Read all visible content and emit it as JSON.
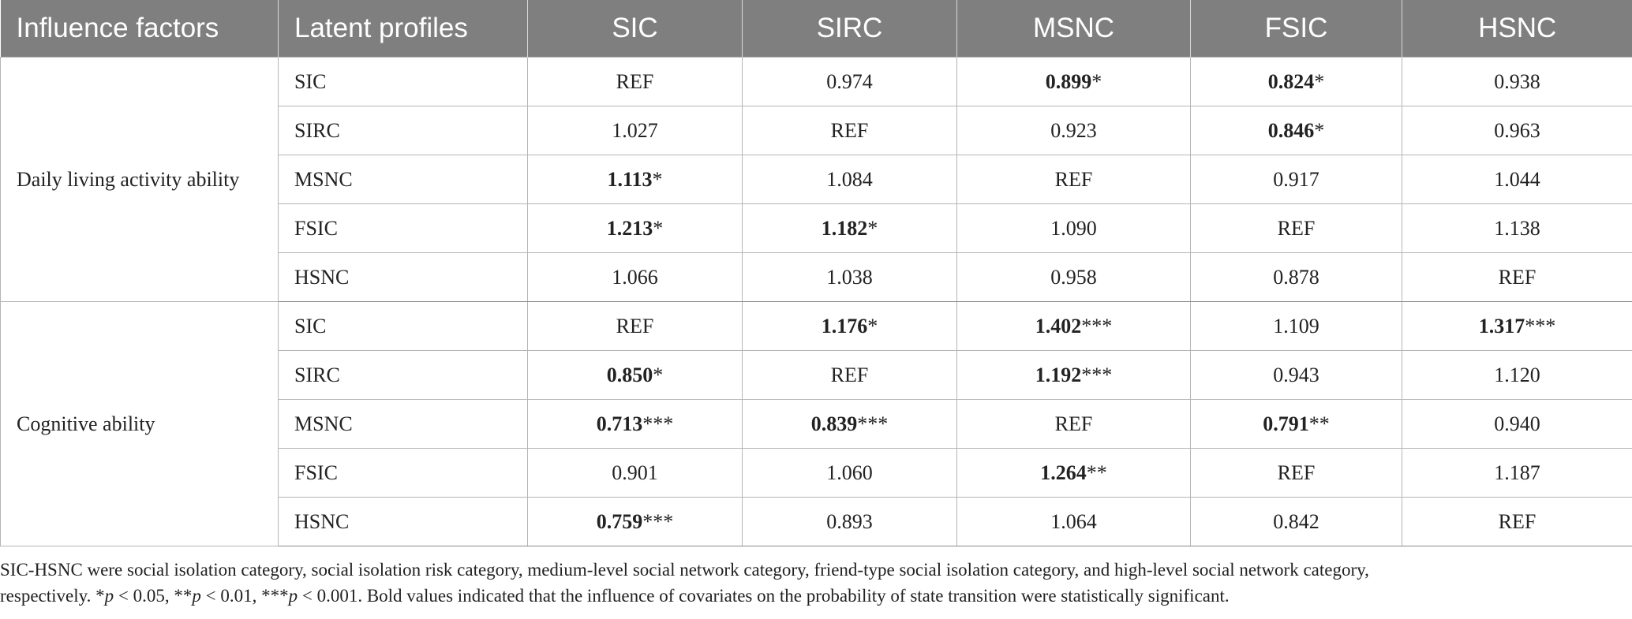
{
  "headers": [
    "Influence factors",
    "Latent profiles",
    "SIC",
    "SIRC",
    "MSNC",
    "FSIC",
    "HSNC"
  ],
  "groups": [
    {
      "factor": "Daily living activity ability",
      "rows": [
        {
          "profile": "SIC",
          "cells": [
            {
              "v": "REF",
              "b": false,
              "s": ""
            },
            {
              "v": "0.974",
              "b": false,
              "s": ""
            },
            {
              "v": "0.899",
              "b": true,
              "s": "*"
            },
            {
              "v": "0.824",
              "b": true,
              "s": "*"
            },
            {
              "v": "0.938",
              "b": false,
              "s": ""
            }
          ]
        },
        {
          "profile": "SIRC",
          "cells": [
            {
              "v": "1.027",
              "b": false,
              "s": ""
            },
            {
              "v": "REF",
              "b": false,
              "s": ""
            },
            {
              "v": "0.923",
              "b": false,
              "s": ""
            },
            {
              "v": "0.846",
              "b": true,
              "s": "*"
            },
            {
              "v": "0.963",
              "b": false,
              "s": ""
            }
          ]
        },
        {
          "profile": "MSNC",
          "cells": [
            {
              "v": "1.113",
              "b": true,
              "s": "*"
            },
            {
              "v": "1.084",
              "b": false,
              "s": ""
            },
            {
              "v": "REF",
              "b": false,
              "s": ""
            },
            {
              "v": "0.917",
              "b": false,
              "s": ""
            },
            {
              "v": "1.044",
              "b": false,
              "s": ""
            }
          ]
        },
        {
          "profile": "FSIC",
          "cells": [
            {
              "v": "1.213",
              "b": true,
              "s": "*"
            },
            {
              "v": "1.182",
              "b": true,
              "s": "*"
            },
            {
              "v": "1.090",
              "b": false,
              "s": ""
            },
            {
              "v": "REF",
              "b": false,
              "s": ""
            },
            {
              "v": "1.138",
              "b": false,
              "s": ""
            }
          ]
        },
        {
          "profile": "HSNC",
          "cells": [
            {
              "v": "1.066",
              "b": false,
              "s": ""
            },
            {
              "v": "1.038",
              "b": false,
              "s": ""
            },
            {
              "v": "0.958",
              "b": false,
              "s": ""
            },
            {
              "v": "0.878",
              "b": false,
              "s": ""
            },
            {
              "v": "REF",
              "b": false,
              "s": ""
            }
          ]
        }
      ]
    },
    {
      "factor": "Cognitive ability",
      "rows": [
        {
          "profile": "SIC",
          "cells": [
            {
              "v": "REF",
              "b": false,
              "s": ""
            },
            {
              "v": "1.176",
              "b": true,
              "s": "*"
            },
            {
              "v": "1.402",
              "b": true,
              "s": "***"
            },
            {
              "v": "1.109",
              "b": false,
              "s": ""
            },
            {
              "v": "1.317",
              "b": true,
              "s": "***"
            }
          ]
        },
        {
          "profile": "SIRC",
          "cells": [
            {
              "v": "0.850",
              "b": true,
              "s": "*"
            },
            {
              "v": "REF",
              "b": false,
              "s": ""
            },
            {
              "v": "1.192",
              "b": true,
              "s": "***"
            },
            {
              "v": "0.943",
              "b": false,
              "s": ""
            },
            {
              "v": "1.120",
              "b": false,
              "s": ""
            }
          ]
        },
        {
          "profile": "MSNC",
          "cells": [
            {
              "v": "0.713",
              "b": true,
              "s": "***"
            },
            {
              "v": "0.839",
              "b": true,
              "s": "***"
            },
            {
              "v": "REF",
              "b": false,
              "s": ""
            },
            {
              "v": "0.791",
              "b": true,
              "s": "**"
            },
            {
              "v": "0.940",
              "b": false,
              "s": ""
            }
          ]
        },
        {
          "profile": "FSIC",
          "cells": [
            {
              "v": "0.901",
              "b": false,
              "s": ""
            },
            {
              "v": "1.060",
              "b": false,
              "s": ""
            },
            {
              "v": "1.264",
              "b": true,
              "s": "**"
            },
            {
              "v": "REF",
              "b": false,
              "s": ""
            },
            {
              "v": "1.187",
              "b": false,
              "s": ""
            }
          ]
        },
        {
          "profile": "HSNC",
          "cells": [
            {
              "v": "0.759",
              "b": true,
              "s": "***"
            },
            {
              "v": "0.893",
              "b": false,
              "s": ""
            },
            {
              "v": "1.064",
              "b": false,
              "s": ""
            },
            {
              "v": "0.842",
              "b": false,
              "s": ""
            },
            {
              "v": "REF",
              "b": false,
              "s": ""
            }
          ]
        }
      ]
    }
  ],
  "footnote": {
    "line1": "SIC-HSNC were social isolation category, social isolation risk category, medium-level social network category, friend-type social isolation category, and high-level social network category,",
    "line2_prefix": "respectively. *",
    "p": "p",
    "t1": " < 0.05, **",
    "t2": " < 0.01, ***",
    "t3": " < 0.001. Bold values indicated that the influence of covariates on the probability of state transition were statistically significant."
  }
}
